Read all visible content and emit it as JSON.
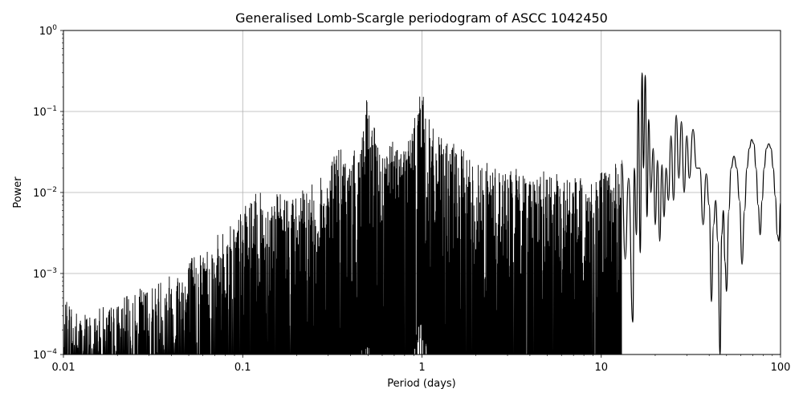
{
  "chart_data": {
    "type": "line",
    "title": "Generalised Lomb-Scargle periodogram of ASCC 1042450",
    "xlabel": "Period (days)",
    "ylabel": "Power",
    "x_scale": "log",
    "y_scale": "log",
    "xlim": [
      0.01,
      100
    ],
    "ylim": [
      0.0001,
      1
    ],
    "grid": true,
    "x_ticks": [
      {
        "value": 0.01,
        "label": "0.01"
      },
      {
        "value": 0.1,
        "label": "0.1"
      },
      {
        "value": 1,
        "label": "1"
      },
      {
        "value": 10,
        "label": "10"
      },
      {
        "value": 100,
        "label": "100"
      }
    ],
    "y_ticks": [
      {
        "value": 0.0001,
        "base": "10",
        "exp": "−4"
      },
      {
        "value": 0.001,
        "base": "10",
        "exp": "−3"
      },
      {
        "value": 0.01,
        "base": "10",
        "exp": "−2"
      },
      {
        "value": 0.1,
        "base": "10",
        "exp": "−1"
      },
      {
        "value": 1,
        "base": "10",
        "exp": "0"
      }
    ],
    "line_color": "#000000",
    "envelope": [
      [
        0.01,
        0.00025
      ],
      [
        0.0105,
        0.0006
      ],
      [
        0.012,
        0.00035
      ],
      [
        0.015,
        0.00035
      ],
      [
        0.02,
        0.00045
      ],
      [
        0.03,
        0.00075
      ],
      [
        0.04,
        0.0011
      ],
      [
        0.05,
        0.0016
      ],
      [
        0.06,
        0.0022
      ],
      [
        0.07,
        0.0028
      ],
      [
        0.08,
        0.0036
      ],
      [
        0.1,
        0.0062
      ],
      [
        0.12,
        0.01
      ],
      [
        0.15,
        0.0095
      ],
      [
        0.2,
        0.0095
      ],
      [
        0.25,
        0.013
      ],
      [
        0.3,
        0.018
      ],
      [
        0.33,
        0.04
      ],
      [
        0.4,
        0.025
      ],
      [
        0.45,
        0.05
      ],
      [
        0.49,
        0.14
      ],
      [
        0.52,
        0.08
      ],
      [
        0.6,
        0.035
      ],
      [
        0.7,
        0.05
      ],
      [
        0.8,
        0.045
      ],
      [
        0.9,
        0.07
      ],
      [
        0.98,
        0.25
      ],
      [
        1.05,
        0.1
      ],
      [
        1.2,
        0.05
      ],
      [
        1.5,
        0.04
      ],
      [
        2.0,
        0.025
      ],
      [
        3.0,
        0.02
      ],
      [
        5.0,
        0.018
      ],
      [
        7.0,
        0.015
      ],
      [
        9.0,
        0.015
      ],
      [
        11.0,
        0.02
      ],
      [
        13.0,
        0.025
      ]
    ],
    "series": [
      {
        "x": [
          13.0,
          13.6,
          14.2,
          15.0,
          15.3,
          15.7,
          16.1,
          16.5,
          16.9,
          17.2,
          17.6,
          18.0,
          18.4,
          18.9,
          19.5,
          20.0,
          20.6,
          21.2,
          21.8,
          22.4,
          23.0,
          23.7,
          24.5,
          25.3,
          26.2,
          27.1,
          28.0,
          29.0,
          30.0,
          31.0,
          32.5,
          34.0,
          35.5,
          37.0,
          38.5,
          40.0,
          41.2,
          42.3,
          43.5,
          44.7,
          46.0,
          47.0,
          48.0,
          49.0,
          50.0,
          51.5,
          53.0,
          55.0,
          57.0,
          59.0,
          61.0,
          63.0,
          65.0,
          67.0,
          69.0,
          71.0,
          73.0,
          75.0,
          77.0,
          79.0,
          81.0,
          83.5,
          86.0,
          88.5,
          91.0,
          93.5,
          96.0,
          98.0,
          100.0
        ],
        "y": [
          0.025,
          0.0015,
          0.015,
          0.00025,
          0.02,
          0.003,
          0.14,
          0.0018,
          0.3,
          0.02,
          0.28,
          0.005,
          0.08,
          0.01,
          0.035,
          0.004,
          0.025,
          0.0025,
          0.022,
          0.005,
          0.02,
          0.008,
          0.05,
          0.008,
          0.09,
          0.015,
          0.075,
          0.01,
          0.05,
          0.015,
          0.06,
          0.02,
          0.02,
          0.004,
          0.017,
          0.007,
          0.00045,
          0.004,
          0.008,
          0.0025,
          0.0001,
          0.003,
          0.006,
          0.0014,
          0.0006,
          0.006,
          0.02,
          0.028,
          0.02,
          0.008,
          0.0013,
          0.006,
          0.02,
          0.035,
          0.045,
          0.04,
          0.02,
          0.007,
          0.003,
          0.008,
          0.02,
          0.035,
          0.04,
          0.035,
          0.02,
          0.009,
          0.003,
          0.0025,
          0.0075
        ]
      }
    ]
  }
}
